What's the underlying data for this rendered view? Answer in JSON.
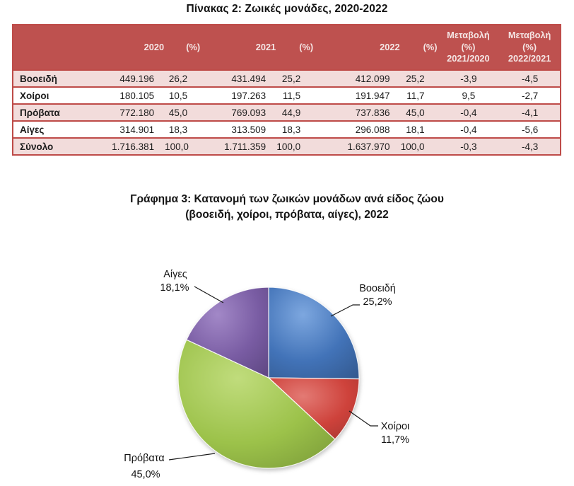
{
  "table": {
    "title": "Πίνακας 2: Ζωικές μονάδες, 2020-2022",
    "columns": [
      "",
      "2020",
      "(%)",
      "2021",
      "(%)",
      "2022",
      "(%)",
      "Μεταβολή\n(%)\n2021/2020",
      "Μεταβολή\n(%)\n2022/2021"
    ],
    "rows": [
      {
        "label": "Βοοειδή",
        "values": [
          "449.196",
          "26,2",
          "431.494",
          "25,2",
          "412.099",
          "25,2",
          "-3,9",
          "-4,5"
        ]
      },
      {
        "label": "Χοίροι",
        "values": [
          "180.105",
          "10,5",
          "197.263",
          "11,5",
          "191.947",
          "11,7",
          "9,5",
          "-2,7"
        ]
      },
      {
        "label": "Πρόβατα",
        "values": [
          "772.180",
          "45,0",
          "769.093",
          "44,9",
          "737.836",
          "45,0",
          "-0,4",
          "-4,1"
        ]
      },
      {
        "label": "Αίγες",
        "values": [
          "314.901",
          "18,3",
          "313.509",
          "18,3",
          "296.088",
          "18,1",
          "-0,4",
          "-5,6"
        ]
      },
      {
        "label": "Σύνολο",
        "values": [
          "1.716.381",
          "100,0",
          "1.711.359",
          "100,0",
          "1.637.970",
          "100,0",
          "-0,3",
          "-4,3"
        ]
      }
    ],
    "style": {
      "header_bg": "#BE514F",
      "header_text": "#F5E6E5",
      "border": "#BE4B48",
      "alt_row_bg": "#F2DCDB"
    }
  },
  "chart_data": {
    "type": "pie",
    "title": "Γράφημα 3: Κατανομή των ζωικών μονάδων ανά είδος ζώου (βοοειδή, χοίροι, πρόβατα, αίγες), 2022",
    "title_line1": "Γράφημα 3: Κατανομή των ζωικών μονάδων ανά είδος ζώου",
    "title_line2": "(βοοειδή, χοίροι, πρόβατα, αίγες), 2022",
    "year": "2022",
    "start_angle_deg": 0,
    "direction": "clockwise",
    "legend_position": "callout-labels",
    "slices": [
      {
        "label": "Βοοειδή",
        "value": 25.2,
        "pct_label": "25,2%",
        "color": "#4273B8",
        "light": "#7DA7DF",
        "dark": "#33598F"
      },
      {
        "label": "Χοίροι",
        "value": 11.7,
        "pct_label": "11,7%",
        "color": "#CE423B",
        "light": "#E37A74",
        "dark": "#A33631"
      },
      {
        "label": "Πρόβατα",
        "value": 45.0,
        "pct_label": "45,0%",
        "color": "#9CC24A",
        "light": "#C0DC7C",
        "dark": "#7A9A38"
      },
      {
        "label": "Αίγες",
        "value": 18.1,
        "pct_label": "18,1%",
        "color": "#795CA3",
        "light": "#A288C7",
        "dark": "#5E4782"
      }
    ]
  }
}
